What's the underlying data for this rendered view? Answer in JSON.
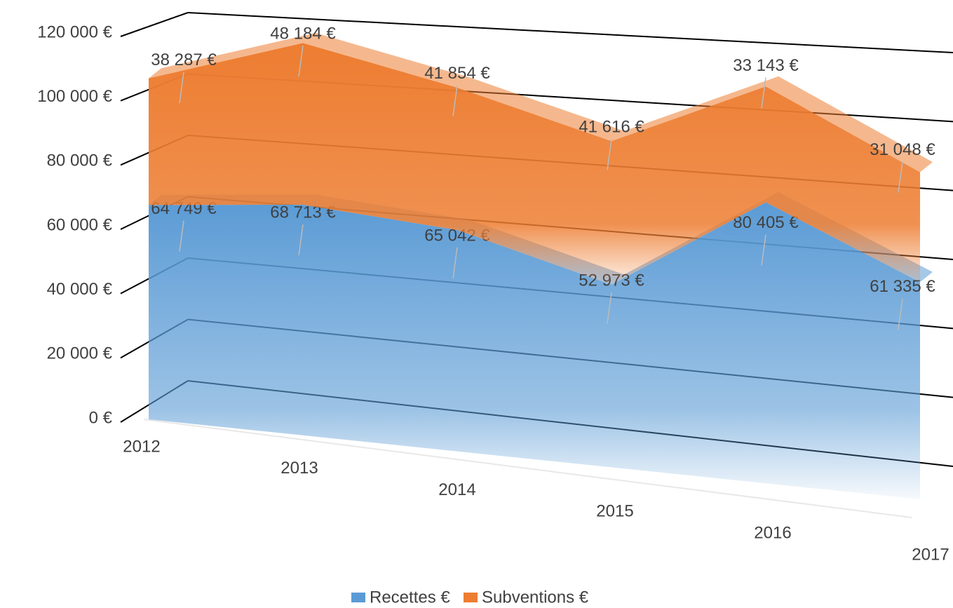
{
  "chart_data": {
    "type": "area",
    "stacked": true,
    "categories": [
      "2012",
      "2013",
      "2014",
      "2015",
      "2016",
      "2017"
    ],
    "series": [
      {
        "name": "Recettes €",
        "color": "#5b9bd5",
        "values": [
          64749,
          68713,
          65042,
          52973,
          80405,
          61335
        ],
        "value_labels": [
          "64 749 €",
          "68 713 €",
          "65 042 €",
          "52 973 €",
          "80 405 €",
          "61 335 €"
        ]
      },
      {
        "name": "Subventions €",
        "color": "#ed7d31",
        "values": [
          38287,
          48184,
          41854,
          41616,
          33143,
          31048
        ],
        "value_labels": [
          "38 287 €",
          "48 184 €",
          "41 854 €",
          "41 616 €",
          "33 143 €",
          "31 048 €"
        ]
      }
    ],
    "ylim": [
      0,
      120000
    ],
    "yticks": [
      {
        "value": 0,
        "label": "0 €"
      },
      {
        "value": 20000,
        "label": "20 000 €"
      },
      {
        "value": 40000,
        "label": "40 000 €"
      },
      {
        "value": 60000,
        "label": "60 000 €"
      },
      {
        "value": 80000,
        "label": "80 000 €"
      },
      {
        "value": 100000,
        "label": "100 000 €"
      },
      {
        "value": 120000,
        "label": "120 000 €"
      }
    ],
    "grid": true,
    "legend": "bottom"
  }
}
